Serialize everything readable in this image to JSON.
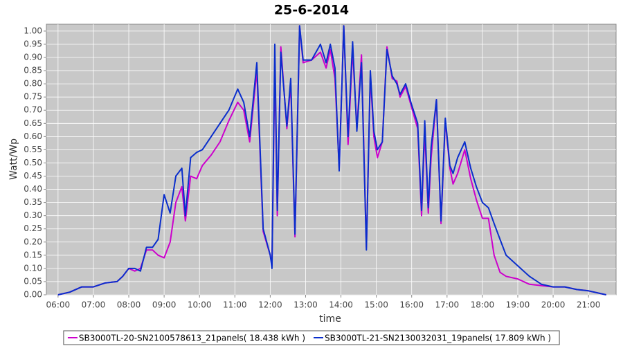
{
  "chart_data": {
    "type": "line",
    "title": "25-6-2014",
    "xlabel": "time",
    "ylabel": "Watt/Wp",
    "x": [
      6,
      6.33,
      6.67,
      7,
      7.33,
      7.67,
      7.83,
      8,
      8.17,
      8.33,
      8.5,
      8.67,
      8.83,
      9,
      9.17,
      9.33,
      9.5,
      9.6,
      9.75,
      9.92,
      10.08,
      10.33,
      10.58,
      10.83,
      11.08,
      11.25,
      11.42,
      11.62,
      11.8,
      12,
      12.05,
      12.13,
      12.2,
      12.3,
      12.47,
      12.58,
      12.7,
      12.83,
      12.93,
      13.17,
      13.42,
      13.58,
      13.7,
      13.83,
      13.95,
      14.08,
      14.2,
      14.33,
      14.45,
      14.58,
      14.72,
      14.83,
      14.93,
      15.03,
      15.17,
      15.3,
      15.45,
      15.58,
      15.67,
      15.83,
      16,
      16.17,
      16.28,
      16.37,
      16.47,
      16.55,
      16.7,
      16.83,
      16.95,
      17.08,
      17.17,
      17.3,
      17.5,
      17.67,
      17.83,
      18,
      18.17,
      18.33,
      18.5,
      18.67,
      19,
      19.33,
      19.67,
      20,
      20.33,
      20.67,
      21,
      21.5
    ],
    "series": [
      {
        "name": "SB3000TL-20-SN2100578613_21panels( 18.438 kWh )",
        "color": "#cc00cc",
        "values": [
          0,
          0.01,
          0.03,
          0.03,
          0.045,
          0.05,
          0.07,
          0.1,
          0.09,
          0.1,
          0.17,
          0.17,
          0.15,
          0.14,
          0.2,
          0.35,
          0.41,
          0.28,
          0.45,
          0.44,
          0.49,
          0.53,
          0.58,
          0.66,
          0.73,
          0.7,
          0.58,
          0.85,
          0.24,
          0.15,
          0.11,
          0.88,
          0.3,
          0.94,
          0.63,
          0.8,
          0.22,
          1.02,
          0.88,
          0.89,
          0.92,
          0.86,
          0.93,
          0.82,
          0.48,
          1.02,
          0.57,
          0.93,
          0.63,
          0.91,
          0.18,
          0.83,
          0.6,
          0.52,
          0.58,
          0.94,
          0.82,
          0.81,
          0.75,
          0.79,
          0.71,
          0.63,
          0.3,
          0.62,
          0.31,
          0.52,
          0.74,
          0.27,
          0.66,
          0.48,
          0.42,
          0.46,
          0.55,
          0.44,
          0.36,
          0.29,
          0.29,
          0.15,
          0.085,
          0.07,
          0.06,
          0.04,
          0.035,
          0.03,
          0.03,
          0.02,
          0.015,
          0
        ]
      },
      {
        "name": "SB3000TL-21-SN2130032031_19panels( 17.809 kWh )",
        "color": "#0a2ecc",
        "values": [
          0,
          0.01,
          0.03,
          0.03,
          0.045,
          0.05,
          0.07,
          0.1,
          0.1,
          0.09,
          0.18,
          0.18,
          0.21,
          0.38,
          0.31,
          0.45,
          0.48,
          0.3,
          0.52,
          0.54,
          0.55,
          0.6,
          0.65,
          0.7,
          0.78,
          0.73,
          0.6,
          0.88,
          0.25,
          0.15,
          0.1,
          0.95,
          0.32,
          0.92,
          0.64,
          0.82,
          0.23,
          1.02,
          0.89,
          0.89,
          0.95,
          0.88,
          0.95,
          0.86,
          0.47,
          1.02,
          0.6,
          0.96,
          0.62,
          0.88,
          0.17,
          0.85,
          0.62,
          0.55,
          0.58,
          0.93,
          0.83,
          0.8,
          0.76,
          0.8,
          0.72,
          0.65,
          0.32,
          0.66,
          0.33,
          0.56,
          0.74,
          0.28,
          0.67,
          0.49,
          0.46,
          0.52,
          0.58,
          0.48,
          0.41,
          0.35,
          0.33,
          0.27,
          0.21,
          0.15,
          0.11,
          0.07,
          0.04,
          0.03,
          0.03,
          0.02,
          0.015,
          0
        ]
      }
    ],
    "xlim": [
      5.67,
      21.78
    ],
    "ylim": [
      0,
      1.026
    ],
    "xticks": [
      {
        "value": 6,
        "label": "06:00"
      },
      {
        "value": 7,
        "label": "07:00"
      },
      {
        "value": 8,
        "label": "08:00"
      },
      {
        "value": 9,
        "label": "09:00"
      },
      {
        "value": 10,
        "label": "10:00"
      },
      {
        "value": 11,
        "label": "11:00"
      },
      {
        "value": 12,
        "label": "12:00"
      },
      {
        "value": 13,
        "label": "13:00"
      },
      {
        "value": 14,
        "label": "14:00"
      },
      {
        "value": 15,
        "label": "15:00"
      },
      {
        "value": 16,
        "label": "16:00"
      },
      {
        "value": 17,
        "label": "17:00"
      },
      {
        "value": 18,
        "label": "18:00"
      },
      {
        "value": 19,
        "label": "19:00"
      },
      {
        "value": 20,
        "label": "20:00"
      },
      {
        "value": 21,
        "label": "21:00"
      }
    ],
    "yticks": [
      {
        "value": 0,
        "label": "0.00"
      },
      {
        "value": 0.05,
        "label": "0.05"
      },
      {
        "value": 0.1,
        "label": "0.10"
      },
      {
        "value": 0.15,
        "label": "0.15"
      },
      {
        "value": 0.2,
        "label": "0.20"
      },
      {
        "value": 0.25,
        "label": "0.25"
      },
      {
        "value": 0.3,
        "label": "0.30"
      },
      {
        "value": 0.35,
        "label": "0.35"
      },
      {
        "value": 0.4,
        "label": "0.40"
      },
      {
        "value": 0.45,
        "label": "0.45"
      },
      {
        "value": 0.5,
        "label": "0.50"
      },
      {
        "value": 0.55,
        "label": "0.55"
      },
      {
        "value": 0.6,
        "label": "0.60"
      },
      {
        "value": 0.65,
        "label": "0.65"
      },
      {
        "value": 0.7,
        "label": "0.70"
      },
      {
        "value": 0.75,
        "label": "0.75"
      },
      {
        "value": 0.8,
        "label": "0.80"
      },
      {
        "value": 0.85,
        "label": "0.85"
      },
      {
        "value": 0.9,
        "label": "0.90"
      },
      {
        "value": 0.95,
        "label": "0.95"
      },
      {
        "value": 1,
        "label": "1.00"
      }
    ],
    "grid": true,
    "legend": "bottom"
  }
}
